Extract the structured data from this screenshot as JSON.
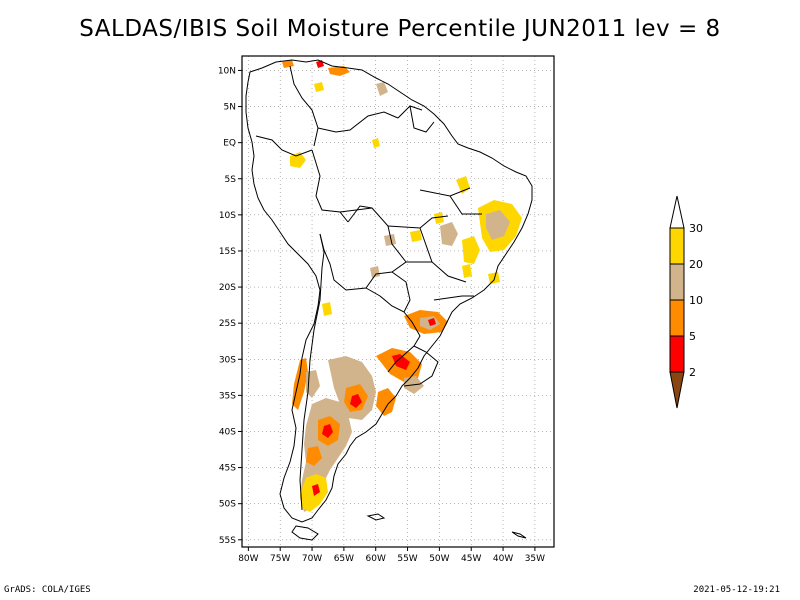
{
  "title": "SALDAS/IBIS Soil Moisture Percentile JUN2011 lev = 8",
  "footer_left": "GrADS: COLA/IGES",
  "footer_right": "2021-05-12-19:21",
  "map": {
    "region": "South America",
    "projection": "lat-lon",
    "lon_range": [
      -81,
      -32
    ],
    "lat_range": [
      -56,
      12
    ],
    "lon_ticks": [
      {
        "value": -80,
        "label": "80W"
      },
      {
        "value": -75,
        "label": "75W"
      },
      {
        "value": -70,
        "label": "70W"
      },
      {
        "value": -65,
        "label": "65W"
      },
      {
        "value": -60,
        "label": "60W"
      },
      {
        "value": -55,
        "label": "55W"
      },
      {
        "value": -50,
        "label": "50W"
      },
      {
        "value": -45,
        "label": "45W"
      },
      {
        "value": -40,
        "label": "40W"
      },
      {
        "value": -35,
        "label": "35W"
      }
    ],
    "lat_ticks": [
      {
        "value": 10,
        "label": "10N"
      },
      {
        "value": 5,
        "label": "5N"
      },
      {
        "value": 0,
        "label": "EQ"
      },
      {
        "value": -5,
        "label": "5S"
      },
      {
        "value": -10,
        "label": "10S"
      },
      {
        "value": -15,
        "label": "15S"
      },
      {
        "value": -20,
        "label": "20S"
      },
      {
        "value": -25,
        "label": "25S"
      },
      {
        "value": -30,
        "label": "30S"
      },
      {
        "value": -35,
        "label": "35S"
      },
      {
        "value": -40,
        "label": "40S"
      },
      {
        "value": -45,
        "label": "45S"
      },
      {
        "value": -50,
        "label": "50S"
      },
      {
        "value": -55,
        "label": "55S"
      }
    ],
    "gridlines": "dotted"
  },
  "colorbar": {
    "orientation": "vertical",
    "placement": "right",
    "levels": [
      {
        "label": "30",
        "color": "#ffffff"
      },
      {
        "label": "20",
        "color": "#ffd700"
      },
      {
        "label": "10",
        "color": "#d2b48c"
      },
      {
        "label": "5",
        "color": "#ff8c00"
      },
      {
        "label": "2",
        "color": "#ff0000"
      }
    ],
    "top_color": "#ffffff",
    "bottom_color": "#8b4513",
    "colors": {
      "gt30": "#ffffff",
      "20_30": "#ffd700",
      "10_20": "#d2b48c",
      "5_10": "#ff8c00",
      "2_5": "#ff0000",
      "lt2": "#8b4513"
    }
  }
}
